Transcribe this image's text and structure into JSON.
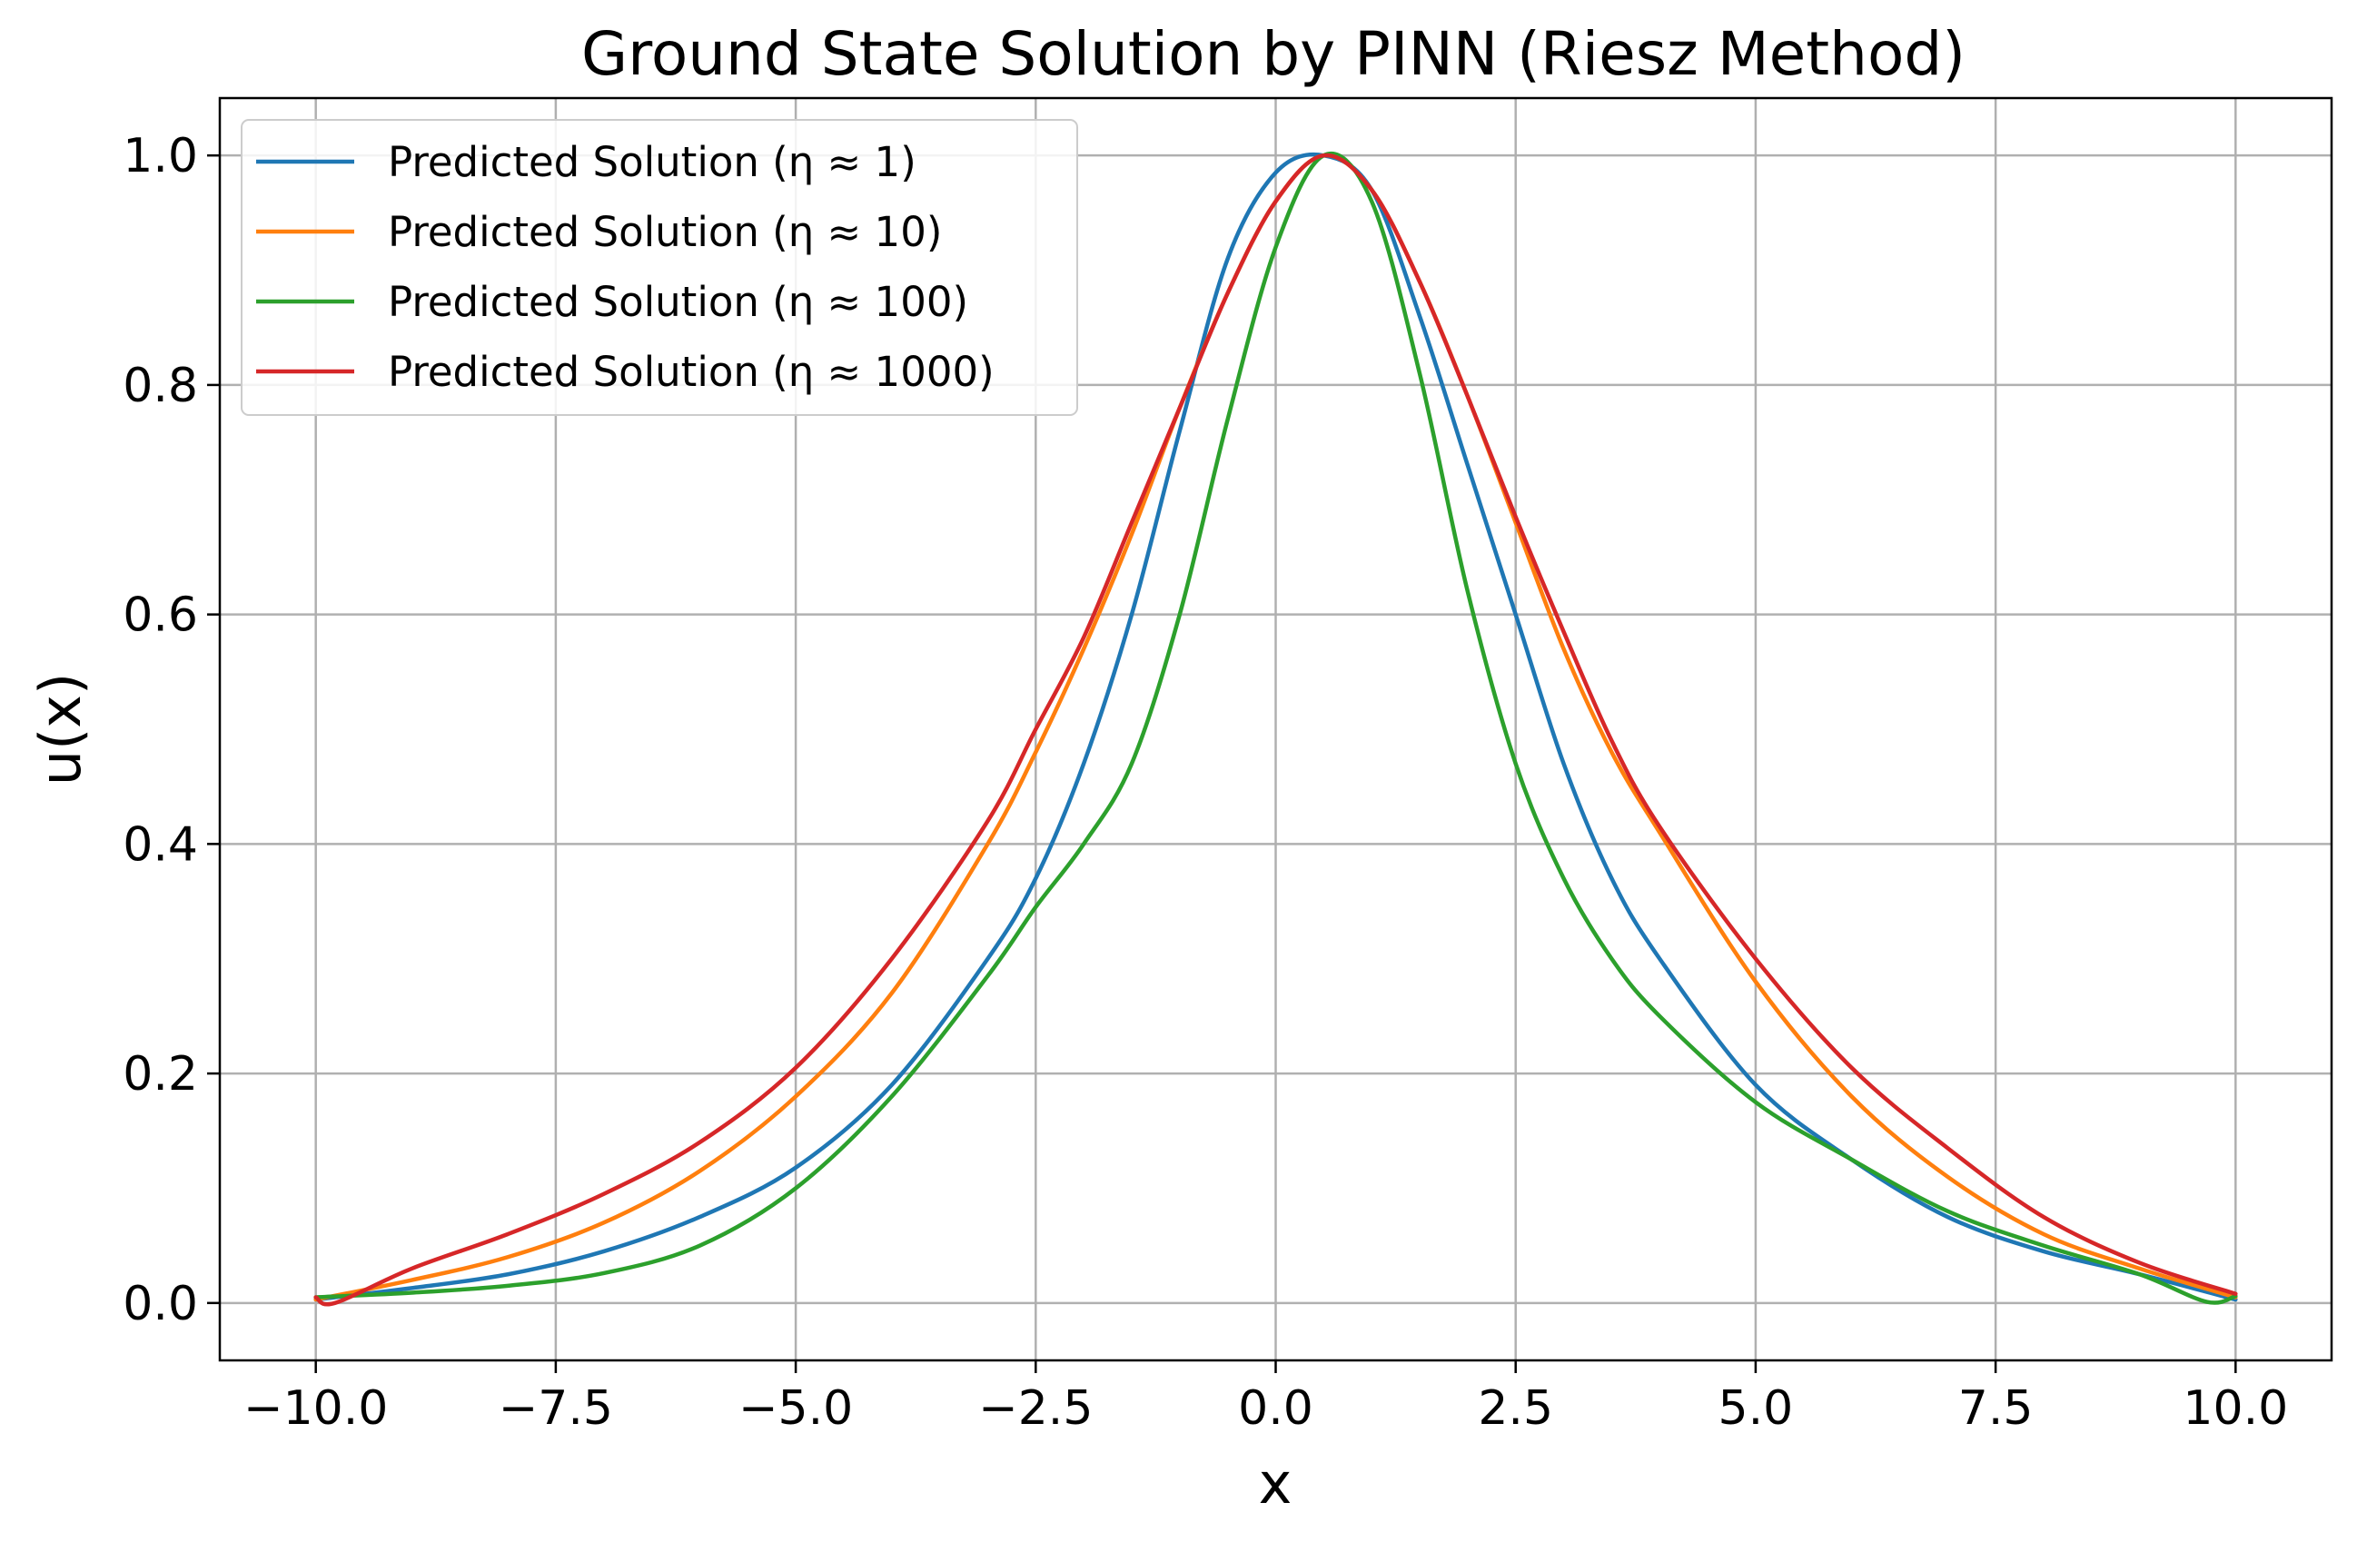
{
  "chart_data": {
    "type": "line",
    "title": "Ground State Solution by PINN (Riesz Method)",
    "xlabel": "x",
    "ylabel": "u(x)",
    "xlim": [
      -11,
      11
    ],
    "ylim": [
      -0.05,
      1.05
    ],
    "xticks": [
      -10,
      -7.5,
      -5,
      -2.5,
      0,
      2.5,
      5,
      7.5,
      10
    ],
    "xtick_labels": [
      "−10.0",
      "−7.5",
      "−5.0",
      "−2.5",
      "0.0",
      "2.5",
      "5.0",
      "7.5",
      "10.0"
    ],
    "yticks": [
      0,
      0.2,
      0.4,
      0.6,
      0.8,
      1.0
    ],
    "ytick_labels": [
      "0.0",
      "0.2",
      "0.4",
      "0.6",
      "0.8",
      "1.0"
    ],
    "grid": true,
    "legend_position": "upper-left",
    "series": [
      {
        "name": "Predicted Solution (η ≈ 1)",
        "color": "#1f77b4",
        "x": [
          -10,
          -9,
          -8,
          -7,
          -6,
          -5,
          -4,
          -3,
          -2.5,
          -2,
          -1.5,
          -1,
          -0.5,
          0,
          0.5,
          1,
          1.5,
          2,
          2.5,
          3,
          3.5,
          4,
          5,
          6,
          7,
          8,
          9,
          10
        ],
        "y": [
          0.003,
          0.013,
          0.025,
          0.045,
          0.075,
          0.118,
          0.19,
          0.3,
          0.37,
          0.47,
          0.6,
          0.76,
          0.91,
          0.985,
          1.0,
          0.97,
          0.86,
          0.73,
          0.6,
          0.47,
          0.37,
          0.3,
          0.19,
          0.125,
          0.075,
          0.045,
          0.025,
          0.003
        ]
      },
      {
        "name": "Predicted Solution (η ≈ 10)",
        "color": "#ff7f0e",
        "x": [
          -10,
          -9,
          -8,
          -7,
          -6,
          -5,
          -4,
          -3,
          -2.5,
          -2,
          -1.5,
          -1,
          -0.5,
          0,
          0.5,
          1,
          1.5,
          2,
          2.5,
          3,
          3.5,
          4,
          5,
          6,
          7,
          8,
          9,
          10
        ],
        "y": [
          0.003,
          0.02,
          0.04,
          0.07,
          0.115,
          0.18,
          0.27,
          0.4,
          0.48,
          0.57,
          0.67,
          0.78,
          0.88,
          0.96,
          1.0,
          0.97,
          0.89,
          0.79,
          0.68,
          0.57,
          0.48,
          0.41,
          0.28,
          0.18,
          0.11,
          0.06,
          0.03,
          0.005
        ]
      },
      {
        "name": "Predicted Solution (η ≈ 100)",
        "color": "#2ca02c",
        "x": [
          -10,
          -9,
          -8,
          -7,
          -6,
          -5,
          -4,
          -3,
          -2.5,
          -2,
          -1.5,
          -1,
          -0.5,
          0,
          0.5,
          1,
          1.5,
          2,
          2.5,
          3,
          3.5,
          4,
          5,
          6,
          7,
          8,
          9,
          9.7,
          10
        ],
        "y": [
          0.005,
          0.009,
          0.015,
          0.026,
          0.05,
          0.1,
          0.18,
          0.285,
          0.345,
          0.4,
          0.47,
          0.6,
          0.77,
          0.92,
          1.0,
          0.96,
          0.81,
          0.62,
          0.47,
          0.37,
          0.3,
          0.25,
          0.175,
          0.125,
          0.08,
          0.05,
          0.025,
          0.001,
          0.006
        ]
      },
      {
        "name": "Predicted Solution (η ≈ 1000)",
        "color": "#d62728",
        "x": [
          -10,
          -9.8,
          -9,
          -8,
          -7,
          -6,
          -5,
          -4,
          -3,
          -2.5,
          -2,
          -1.5,
          -1,
          -0.5,
          0,
          0.5,
          1,
          1.5,
          2,
          2.5,
          3,
          3.5,
          4,
          5,
          6,
          7,
          8,
          9,
          10
        ],
        "y": [
          0.005,
          0.0,
          0.03,
          0.06,
          0.095,
          0.14,
          0.205,
          0.3,
          0.42,
          0.5,
          0.58,
          0.68,
          0.78,
          0.88,
          0.96,
          1.0,
          0.97,
          0.89,
          0.79,
          0.685,
          0.585,
          0.49,
          0.415,
          0.3,
          0.205,
          0.135,
          0.075,
          0.035,
          0.008
        ]
      }
    ]
  }
}
